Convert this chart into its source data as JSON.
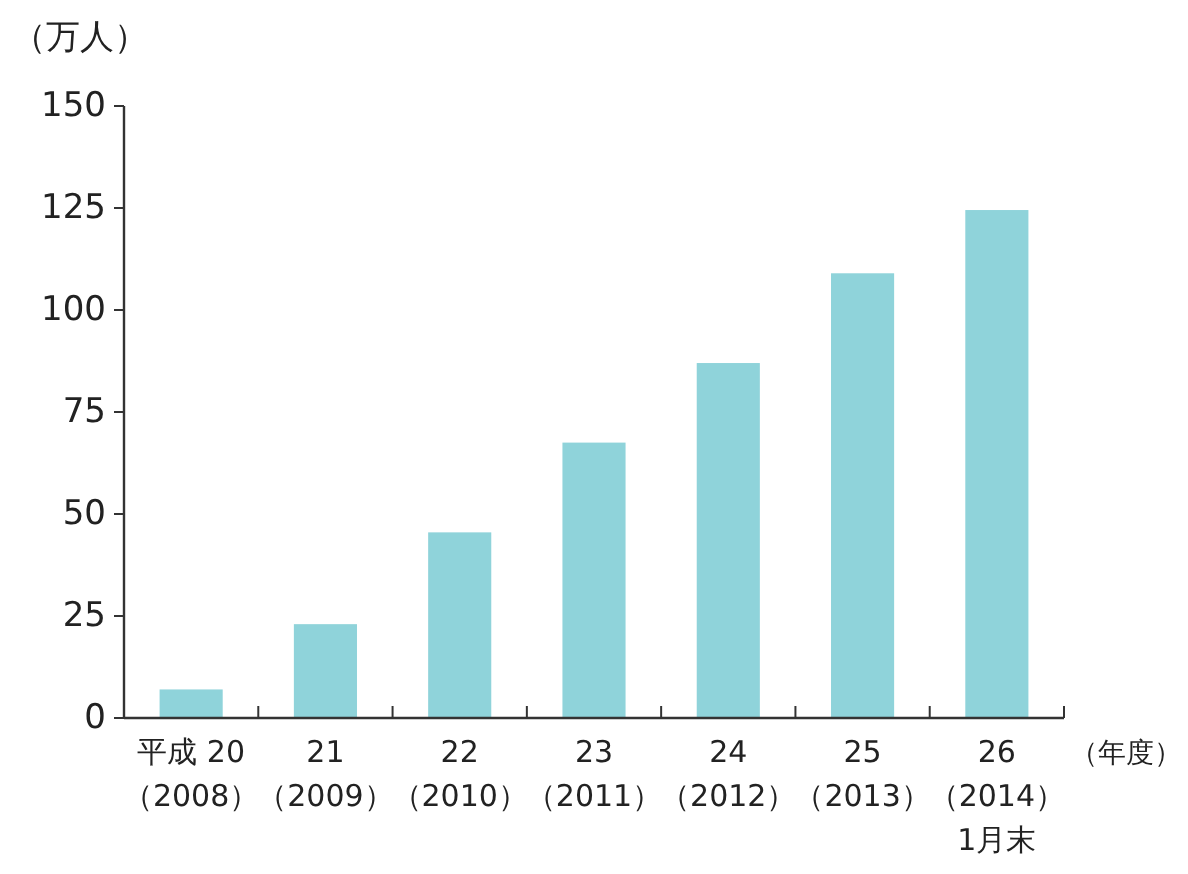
{
  "chart_data": {
    "type": "bar",
    "ylabel": "（万人）",
    "xlabel": "（年度）",
    "categories": [
      "平成 20\n（2008）",
      "21\n（2009）",
      "22\n（2010）",
      "23\n（2011）",
      "24\n（2012）",
      "25\n（2013）",
      "26\n（2014）\n1月末"
    ],
    "values": [
      7,
      23,
      45.5,
      67.5,
      87,
      109,
      124.5
    ],
    "color": "#8fd3da",
    "ylim": [
      0,
      150
    ],
    "yticks": [
      0,
      25,
      50,
      75,
      100,
      125,
      150
    ]
  }
}
